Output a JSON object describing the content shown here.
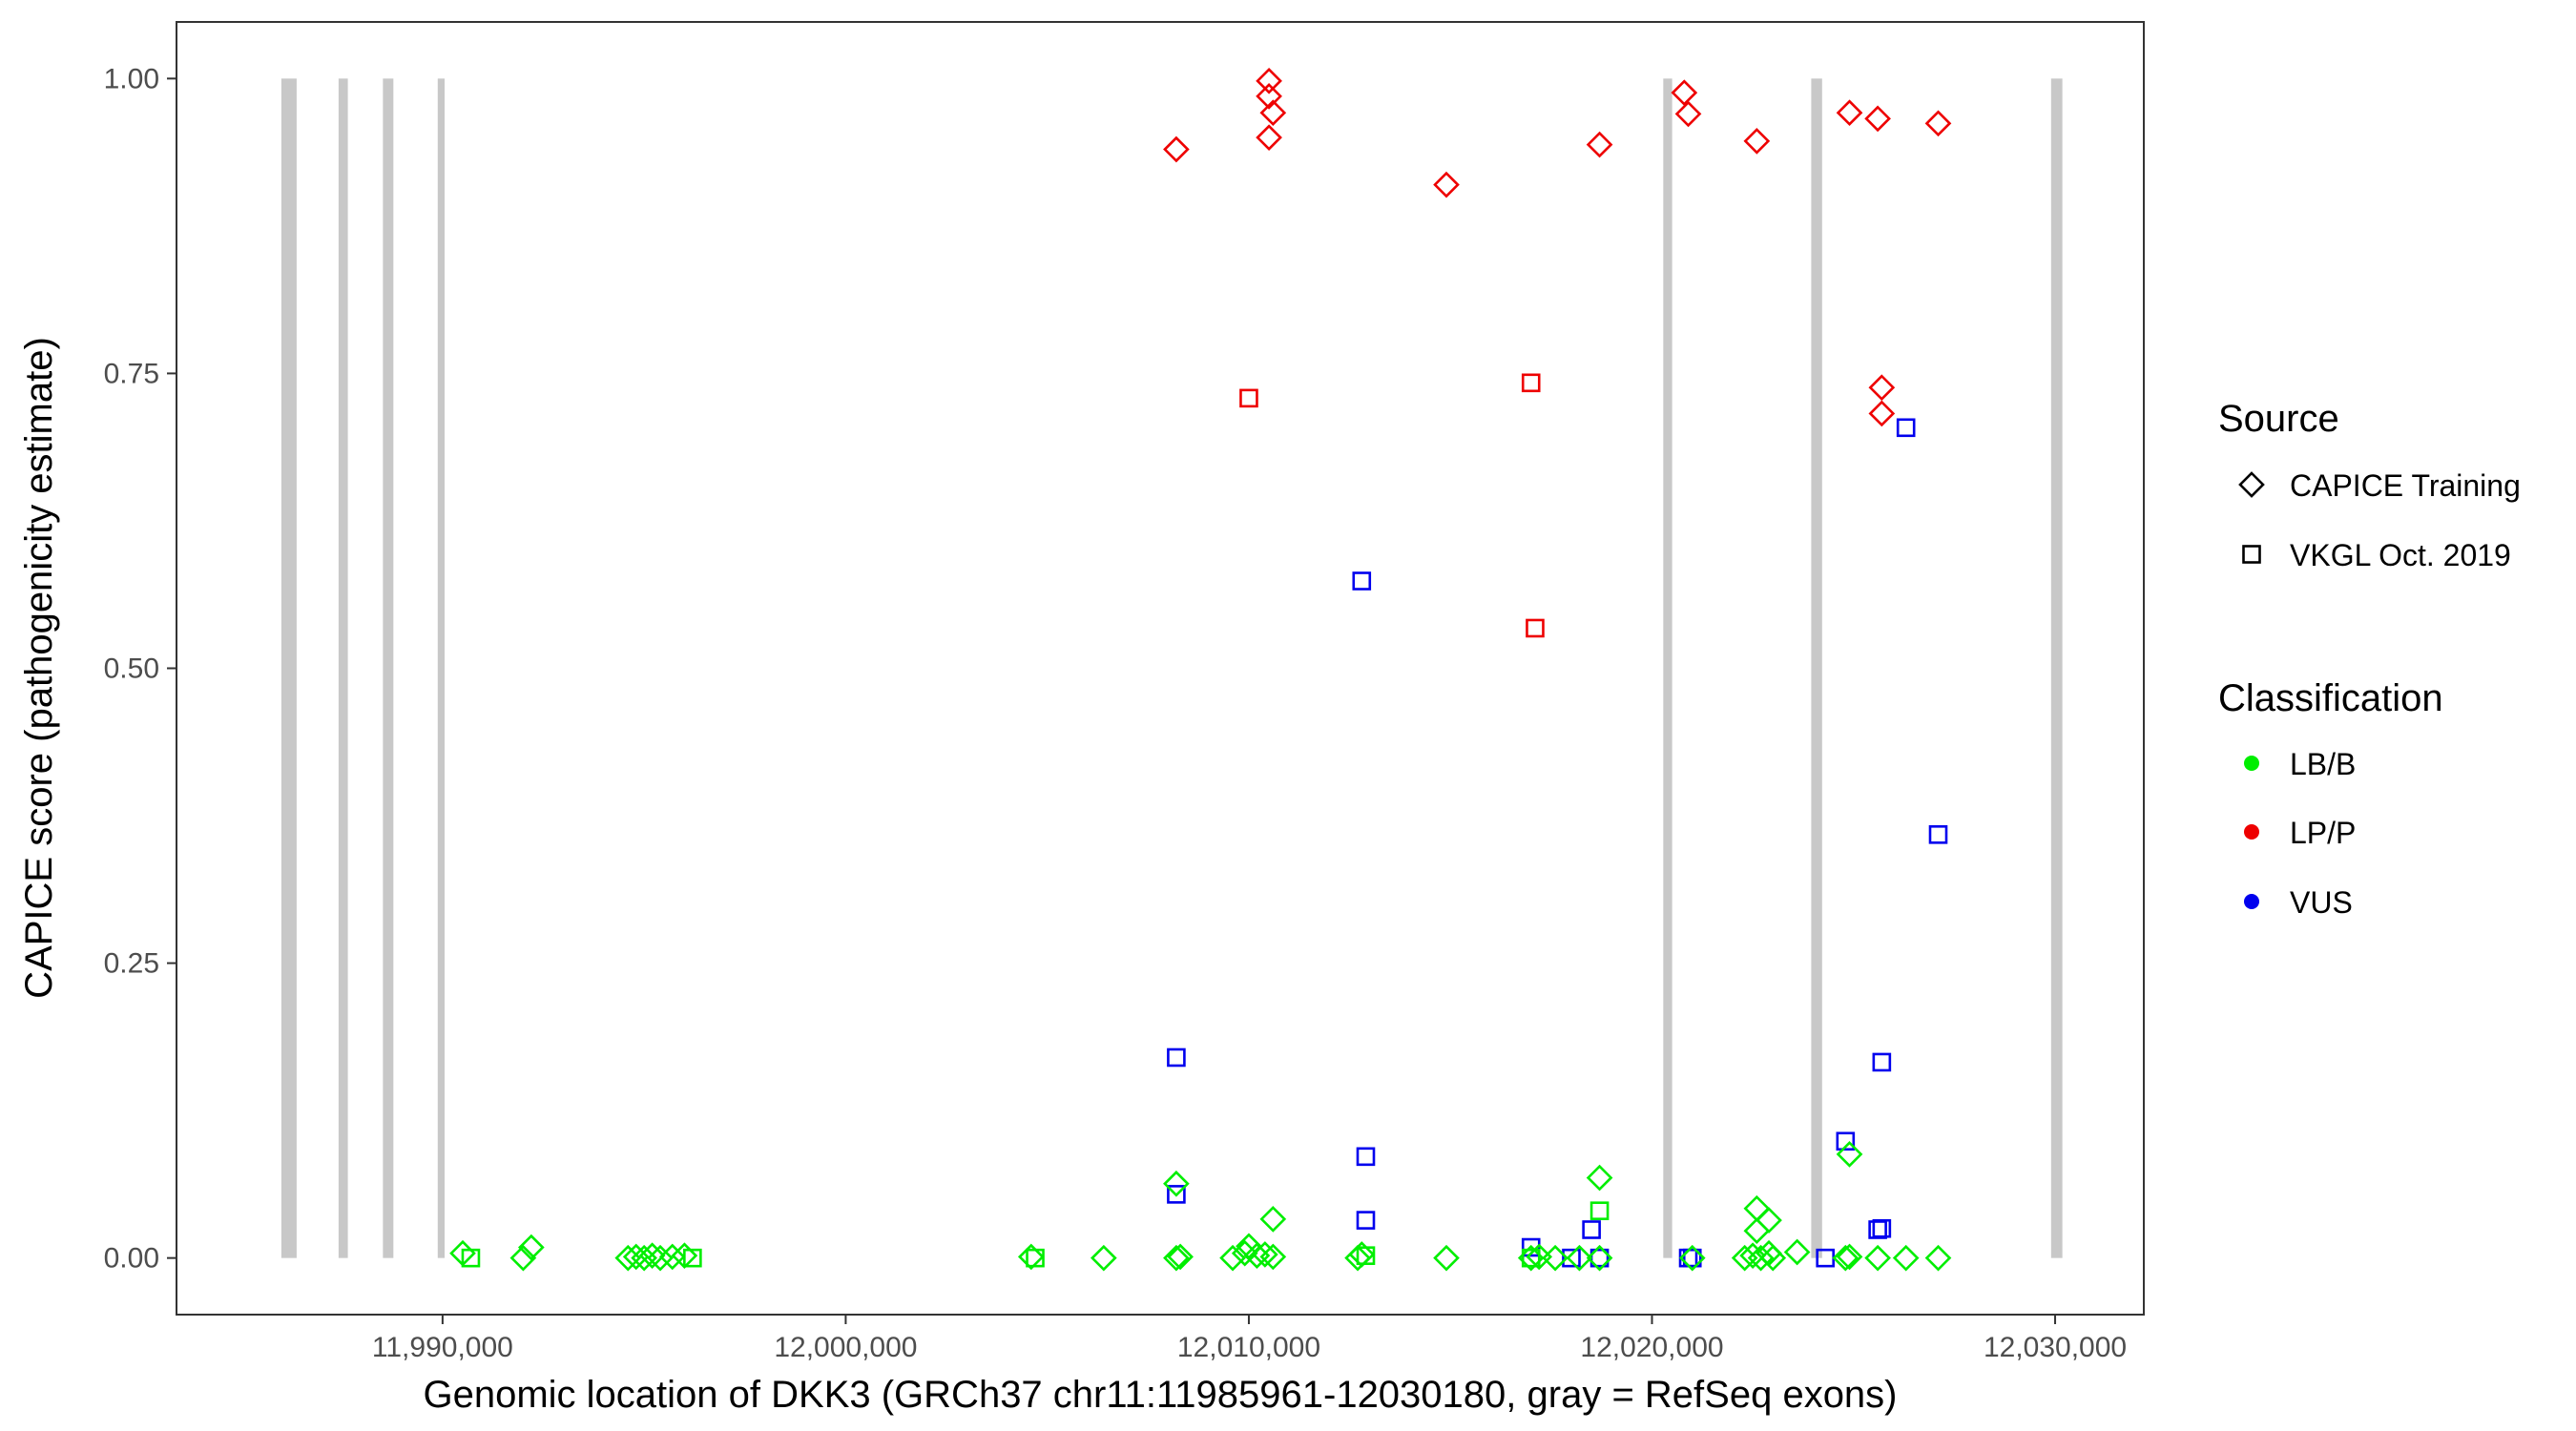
{
  "chart_data": {
    "type": "scatter",
    "title": "",
    "xlabel": "Genomic location of DKK3 (GRCh37 chr11:11985961-12030180, gray = RefSeq exons)",
    "ylabel": "CAPICE score (pathogenicity estimate)",
    "xlim": [
      11983400,
      12032200
    ],
    "ylim": [
      -0.048,
      1.048
    ],
    "x_ticks": [
      11990000,
      12000000,
      12010000,
      12020000,
      12030000
    ],
    "x_tick_labels": [
      "11,990,000",
      "12,000,000",
      "12,010,000",
      "12,020,000",
      "12,030,000"
    ],
    "y_ticks": [
      0,
      0.25,
      0.5,
      0.75,
      1.0
    ],
    "y_tick_labels": [
      "0.00",
      "0.25",
      "0.50",
      "0.75",
      "1.00"
    ],
    "grid": false,
    "exon_color": "#c8c8c8",
    "exons": [
      {
        "start": 11986000,
        "end": 11986380
      },
      {
        "start": 11987420,
        "end": 11987650
      },
      {
        "start": 11988520,
        "end": 11988780
      },
      {
        "start": 11989880,
        "end": 11990050
      },
      {
        "start": 12020280,
        "end": 12020500
      },
      {
        "start": 12023950,
        "end": 12024220
      },
      {
        "start": 12029900,
        "end": 12030180
      }
    ],
    "legend": {
      "placement": "right",
      "source_title": "Source",
      "source_entries": [
        {
          "label": "CAPICE Training",
          "shape": "diamond"
        },
        {
          "label": "VKGL Oct. 2019",
          "shape": "square"
        }
      ],
      "class_title": "Classification",
      "class_entries": [
        {
          "label": "LB/B",
          "color": "#00ee00"
        },
        {
          "label": "LP/P",
          "color": "#ee0000"
        },
        {
          "label": "VUS",
          "color": "#0000ee"
        }
      ]
    },
    "series": [
      {
        "source": "CAPICE Training",
        "classification": "LP/P",
        "color": "#ee0000",
        "shape": "diamond",
        "x": [
          12008200,
          12010500,
          12010500,
          12010600,
          12010500,
          12014900,
          12018700,
          12020800,
          12020900,
          12022600,
          12024900,
          12025600,
          12027100,
          12025700,
          12025700
        ],
        "y": [
          0.94,
          0.998,
          0.985,
          0.971,
          0.95,
          0.91,
          0.944,
          0.988,
          0.97,
          0.947,
          0.971,
          0.966,
          0.962,
          0.738,
          0.716
        ]
      },
      {
        "source": "VKGL Oct. 2019",
        "classification": "LP/P",
        "color": "#ee0000",
        "shape": "square",
        "x": [
          12010000,
          12017000,
          12017100
        ],
        "y": [
          0.729,
          0.742,
          0.534
        ]
      },
      {
        "source": "VKGL Oct. 2019",
        "classification": "VUS",
        "color": "#0000ee",
        "shape": "square",
        "x": [
          12026300,
          12012800,
          12027100,
          12008200,
          12025700,
          12024800,
          12012900,
          12008200,
          12012900,
          12018500,
          12025700,
          12025600,
          12017000,
          12018000,
          12018700,
          12020900,
          12021000,
          12024300
        ],
        "y": [
          0.704,
          0.574,
          0.359,
          0.17,
          0.166,
          0.099,
          0.086,
          0.054,
          0.032,
          0.024,
          0.025,
          0.024,
          0.009,
          0.0,
          0.0,
          0.0,
          0.0,
          0.0
        ]
      },
      {
        "source": "CAPICE Training",
        "classification": "LB/B",
        "color": "#00ee00",
        "shape": "diamond",
        "x": [
          11990500,
          11992000,
          11992200,
          11994600,
          11994800,
          11995000,
          11995200,
          11995400,
          11995700,
          11996000,
          12004600,
          12006400,
          12008200,
          12008300,
          12009600,
          12009900,
          12010000,
          12010200,
          12010400,
          12010600,
          12012700,
          12012800,
          12014900,
          12017000,
          12017200,
          12017600,
          12018200,
          12018700,
          12021000,
          12022300,
          12022500,
          12022700,
          12022900,
          12023000,
          12023600,
          12024800,
          12024900,
          12025600,
          12026300,
          12027100,
          12008200,
          12010600,
          12018700,
          12022600,
          12022900,
          12022600,
          12024900
        ],
        "y": [
          0.004,
          0.0,
          0.009,
          0.0,
          0.001,
          0.0,
          0.002,
          0.0,
          0.001,
          0.002,
          0.001,
          0.0,
          0.0,
          0.001,
          0.0,
          0.004,
          0.01,
          0.002,
          0.003,
          0.001,
          0.0,
          0.003,
          0.0,
          0.0,
          0.001,
          0.0,
          0.0,
          0.0,
          0.0,
          0.0,
          0.002,
          0.0,
          0.004,
          0.0,
          0.005,
          0.0,
          0.001,
          0.0,
          0.0,
          0.0,
          0.063,
          0.033,
          0.068,
          0.042,
          0.032,
          0.023,
          0.088
        ]
      },
      {
        "source": "VKGL Oct. 2019",
        "classification": "LB/B",
        "color": "#00ee00",
        "shape": "square",
        "x": [
          11990700,
          11996200,
          12004700,
          12012900,
          12018700,
          12017000
        ],
        "y": [
          0.0,
          0.0,
          0.0,
          0.002,
          0.04,
          0.0
        ]
      }
    ]
  }
}
